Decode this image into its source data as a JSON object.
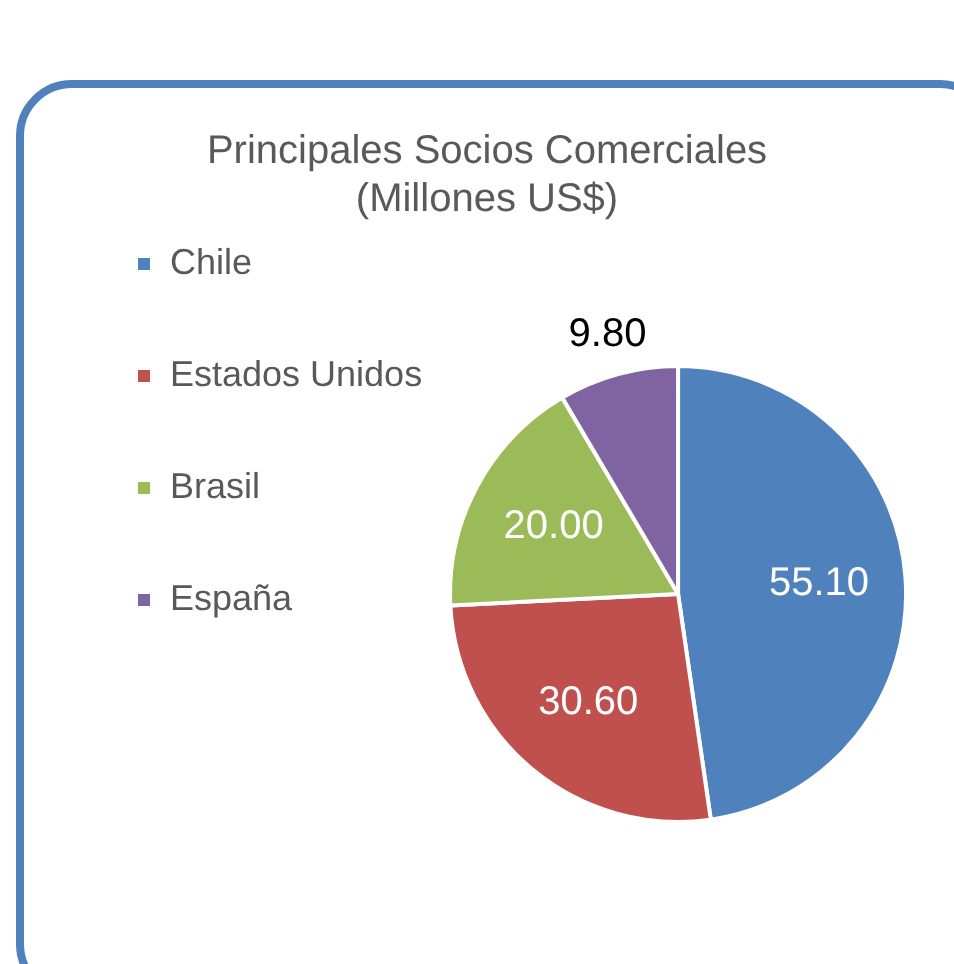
{
  "chart_data": {
    "type": "pie",
    "title": "Principales Socios Comerciales\n(Millones US$)",
    "categories": [
      "Chile",
      "Estados Unidos",
      "Brasil",
      "España"
    ],
    "values": [
      55.1,
      30.6,
      20.0,
      9.8
    ],
    "value_labels": [
      "55.10",
      "30.60",
      "20.00",
      "9.80"
    ],
    "colors": [
      "#4f81bd",
      "#c0504d",
      "#9bbb59",
      "#8064a2"
    ],
    "legend": "left"
  }
}
